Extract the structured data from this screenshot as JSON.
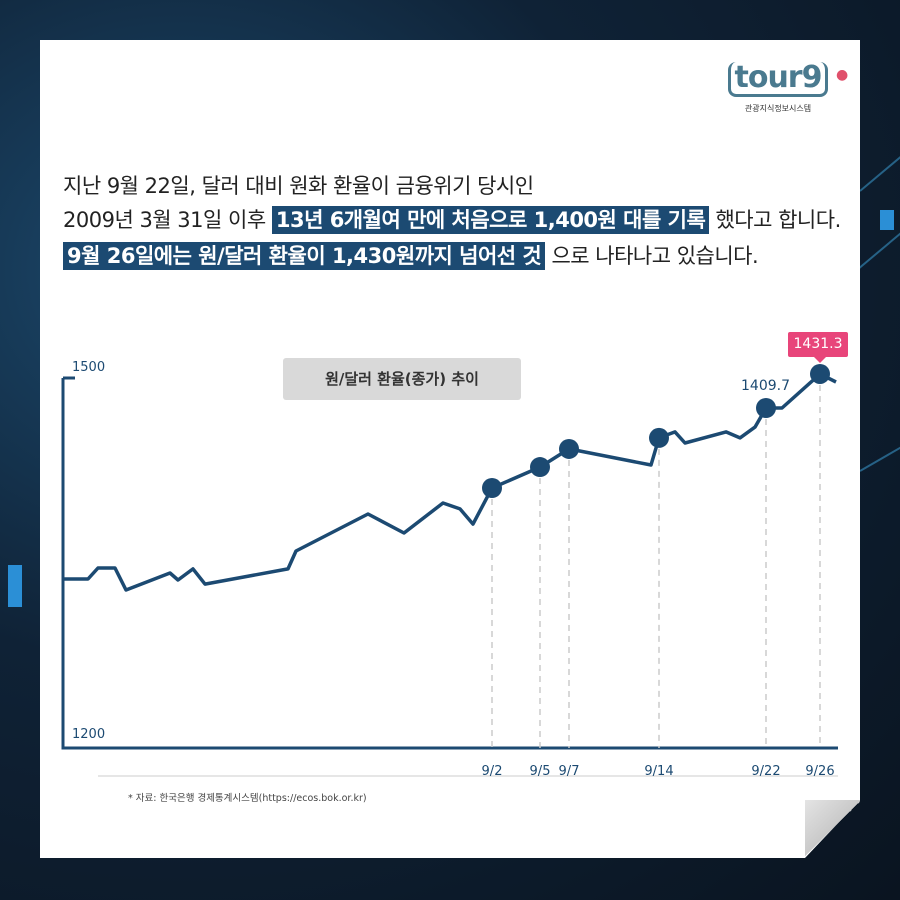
{
  "logo": {
    "word": "tour9",
    "subtitle": "관광지식정보시스템"
  },
  "intro": {
    "line1": "지난 9월 22일, 달러 대비 원화 환율이 금융위기 당시인",
    "line2_a": "2009년 3월 31일 이후",
    "line2_hl": "13년 6개월여 만에 처음으로 1,400원 대를 기록",
    "line2_b": "했다고 합니다.",
    "line3_hl": "9월 26일에는 원/달러 환율이 1,430원까지 넘어선 것",
    "line3_b": "으로 나타나고 있습니다."
  },
  "colors": {
    "line": "#1c4a72",
    "highlight": "#1c4a72",
    "callout": "#e8457a",
    "title_box": "#d9d9d9"
  },
  "chart_data": {
    "type": "line",
    "title": "원/달러 환율(종가) 추이",
    "y_tick_labels": [
      "1500",
      "1200"
    ],
    "x_tick_labels": [
      "9/2",
      "9/5",
      "9/7",
      "9/14",
      "9/22",
      "9/26"
    ],
    "values": [
      1301.1,
      1301.1,
      1308.1,
      1308.1,
      1294.1,
      1304.9,
      1300.5,
      1307.5,
      1297.9,
      1307.5,
      1318.9,
      1342.4,
      1330.3,
      1349.4,
      1345.6,
      1336.0,
      1358.9,
      1372.2,
      1383.7,
      1373.5,
      1390.7,
      1394.5,
      1387.5,
      1394.5,
      1390.7,
      1397.6,
      1409.7,
      1409.7,
      1431.3,
      1426.2
    ],
    "markers": [
      {
        "index": 16,
        "date": "9/2"
      },
      {
        "index": 17,
        "date": "9/5"
      },
      {
        "index": 18,
        "date": "9/7"
      },
      {
        "index": 20,
        "date": "9/14"
      },
      {
        "index": 26,
        "date": "9/22",
        "label": "1409.7"
      },
      {
        "index": 28,
        "date": "9/26",
        "label": "1431.3"
      }
    ],
    "grid": false
  },
  "source": "* 자료: 한국은행 경제통계시스템(https://ecos.bok.or.kr)"
}
